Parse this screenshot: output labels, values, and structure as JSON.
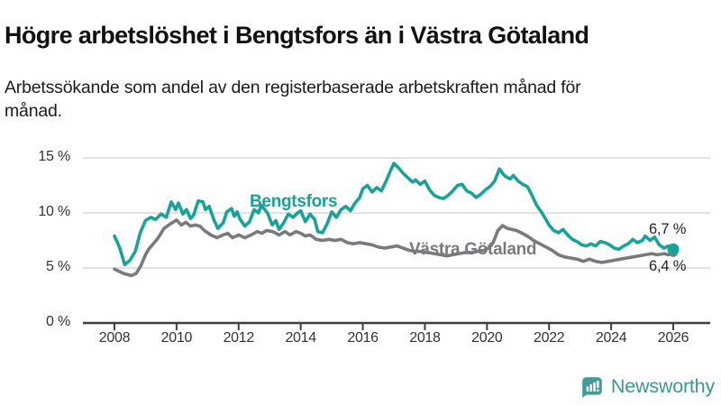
{
  "header": {
    "title": "Högre arbetslöshet i Bengtsfors än i Västra Götaland",
    "subtitle": "Arbetssökande som andel av den registerbaserade arbetskraften månad för månad."
  },
  "footer": {
    "brand": "Newsworthy",
    "logo_icon": "bar-chart-speech-bubble-icon",
    "logo_color": "#459b97"
  },
  "colors": {
    "bengtsfors_line": "#17a398",
    "vastra_gotaland_line": "#797a7e",
    "gridline": "#d8d8d8",
    "axis": "#3f3f3f",
    "tick_text": "#333333"
  },
  "chart_data": {
    "type": "line",
    "title": "Högre arbetslöshet i Bengtsfors än i Västra Götaland",
    "subtitle": "Arbetssökande som andel av den registerbaserade arbetskraften månad för månad.",
    "xlabel": "",
    "ylabel": "",
    "xlim": [
      2007.9,
      2027.2
    ],
    "ylim": [
      0,
      17
    ],
    "grid": "horizontal",
    "legend_position": "inline-labels",
    "x_axis": {
      "ticks": [
        {
          "label": "2008",
          "value": 2008
        },
        {
          "label": "2010",
          "value": 2010
        },
        {
          "label": "2012",
          "value": 2012
        },
        {
          "label": "2014",
          "value": 2014
        },
        {
          "label": "2016",
          "value": 2016
        },
        {
          "label": "2018",
          "value": 2018
        },
        {
          "label": "2020",
          "value": 2020
        },
        {
          "label": "2022",
          "value": 2022
        },
        {
          "label": "2024",
          "value": 2024
        },
        {
          "label": "2026",
          "value": 2026
        }
      ]
    },
    "y_axis": {
      "ticks": [
        {
          "label": "0 %",
          "value": 0
        },
        {
          "label": "5 %",
          "value": 5
        },
        {
          "label": "10 %",
          "value": 10
        },
        {
          "label": "15 %",
          "value": 15
        }
      ],
      "gridline_values": [
        5,
        10,
        15
      ]
    },
    "series": [
      {
        "name": "Bengtsfors",
        "color": "#17a398",
        "end_label": "6,7 %",
        "end_value": 6.7,
        "points": [
          [
            2008.0,
            7.9
          ],
          [
            2008.08,
            7.4
          ],
          [
            2008.17,
            6.8
          ],
          [
            2008.33,
            5.3
          ],
          [
            2008.5,
            5.7
          ],
          [
            2008.67,
            6.5
          ],
          [
            2008.83,
            8.2
          ],
          [
            2009.0,
            9.3
          ],
          [
            2009.17,
            9.6
          ],
          [
            2009.33,
            9.4
          ],
          [
            2009.5,
            9.9
          ],
          [
            2009.67,
            9.6
          ],
          [
            2009.83,
            11.0
          ],
          [
            2009.97,
            10.3
          ],
          [
            2010.06,
            10.9
          ],
          [
            2010.2,
            9.9
          ],
          [
            2010.32,
            10.3
          ],
          [
            2010.45,
            9.5
          ],
          [
            2010.55,
            9.8
          ],
          [
            2010.7,
            11.1
          ],
          [
            2010.85,
            11.0
          ],
          [
            2010.93,
            10.3
          ],
          [
            2011.05,
            10.6
          ],
          [
            2011.2,
            9.4
          ],
          [
            2011.33,
            8.6
          ],
          [
            2011.5,
            9.1
          ],
          [
            2011.62,
            10.1
          ],
          [
            2011.77,
            10.4
          ],
          [
            2011.86,
            9.7
          ],
          [
            2011.95,
            10.1
          ],
          [
            2012.05,
            9.4
          ],
          [
            2012.2,
            8.8
          ],
          [
            2012.35,
            9.2
          ],
          [
            2012.5,
            10.3
          ],
          [
            2012.64,
            10.0
          ],
          [
            2012.73,
            10.7
          ],
          [
            2012.93,
            10.0
          ],
          [
            2013.08,
            8.9
          ],
          [
            2013.2,
            9.3
          ],
          [
            2013.3,
            8.5
          ],
          [
            2013.45,
            9.1
          ],
          [
            2013.6,
            9.9
          ],
          [
            2013.75,
            9.6
          ],
          [
            2013.9,
            10.0
          ],
          [
            2014.0,
            10.2
          ],
          [
            2014.15,
            9.2
          ],
          [
            2014.3,
            9.9
          ],
          [
            2014.45,
            9.4
          ],
          [
            2014.55,
            8.3
          ],
          [
            2014.7,
            8.2
          ],
          [
            2014.85,
            9.0
          ],
          [
            2015.0,
            10.1
          ],
          [
            2015.15,
            9.6
          ],
          [
            2015.3,
            10.3
          ],
          [
            2015.45,
            10.6
          ],
          [
            2015.6,
            10.2
          ],
          [
            2015.75,
            10.9
          ],
          [
            2015.9,
            11.4
          ],
          [
            2016.0,
            12.2
          ],
          [
            2016.15,
            12.5
          ],
          [
            2016.3,
            11.9
          ],
          [
            2016.45,
            12.3
          ],
          [
            2016.6,
            12.0
          ],
          [
            2016.75,
            12.9
          ],
          [
            2016.9,
            13.9
          ],
          [
            2017.0,
            14.5
          ],
          [
            2017.15,
            14.1
          ],
          [
            2017.3,
            13.6
          ],
          [
            2017.45,
            13.2
          ],
          [
            2017.6,
            12.8
          ],
          [
            2017.7,
            13.0
          ],
          [
            2017.85,
            12.6
          ],
          [
            2018.0,
            12.9
          ],
          [
            2018.15,
            12.1
          ],
          [
            2018.3,
            11.6
          ],
          [
            2018.45,
            11.4
          ],
          [
            2018.6,
            11.3
          ],
          [
            2018.75,
            11.6
          ],
          [
            2018.9,
            12.0
          ],
          [
            2019.05,
            12.5
          ],
          [
            2019.2,
            12.6
          ],
          [
            2019.35,
            12.0
          ],
          [
            2019.5,
            11.8
          ],
          [
            2019.65,
            11.4
          ],
          [
            2019.8,
            11.7
          ],
          [
            2019.95,
            12.1
          ],
          [
            2020.1,
            12.4
          ],
          [
            2020.25,
            12.9
          ],
          [
            2020.4,
            14.0
          ],
          [
            2020.5,
            13.6
          ],
          [
            2020.6,
            13.3
          ],
          [
            2020.75,
            13.1
          ],
          [
            2020.85,
            13.4
          ],
          [
            2021.0,
            12.9
          ],
          [
            2021.15,
            12.6
          ],
          [
            2021.3,
            12.4
          ],
          [
            2021.45,
            11.6
          ],
          [
            2021.6,
            10.7
          ],
          [
            2021.75,
            10.1
          ],
          [
            2021.9,
            9.4
          ],
          [
            2022.0,
            8.9
          ],
          [
            2022.15,
            8.4
          ],
          [
            2022.3,
            8.2
          ],
          [
            2022.45,
            8.5
          ],
          [
            2022.6,
            8.0
          ],
          [
            2022.75,
            7.6
          ],
          [
            2022.9,
            7.4
          ],
          [
            2023.05,
            7.1
          ],
          [
            2023.2,
            7.0
          ],
          [
            2023.35,
            7.2
          ],
          [
            2023.5,
            7.0
          ],
          [
            2023.65,
            7.4
          ],
          [
            2023.8,
            7.3
          ],
          [
            2023.95,
            7.1
          ],
          [
            2024.1,
            6.8
          ],
          [
            2024.25,
            6.7
          ],
          [
            2024.4,
            7.0
          ],
          [
            2024.55,
            7.2
          ],
          [
            2024.7,
            7.6
          ],
          [
            2024.85,
            7.3
          ],
          [
            2025.0,
            7.5
          ],
          [
            2025.1,
            7.9
          ],
          [
            2025.25,
            7.5
          ],
          [
            2025.4,
            7.8
          ],
          [
            2025.55,
            7.1
          ],
          [
            2025.7,
            6.8
          ],
          [
            2025.85,
            7.0
          ],
          [
            2026.0,
            6.7
          ]
        ]
      },
      {
        "name": "Västra Götaland",
        "color": "#797a7e",
        "end_label": "6,4 %",
        "end_value": 6.4,
        "points": [
          [
            2008.0,
            4.9
          ],
          [
            2008.15,
            4.7
          ],
          [
            2008.3,
            4.5
          ],
          [
            2008.55,
            4.3
          ],
          [
            2008.7,
            4.5
          ],
          [
            2008.85,
            5.2
          ],
          [
            2009.0,
            6.2
          ],
          [
            2009.1,
            6.7
          ],
          [
            2009.25,
            7.2
          ],
          [
            2009.4,
            7.7
          ],
          [
            2009.6,
            8.6
          ],
          [
            2009.8,
            9.0
          ],
          [
            2010.0,
            9.35
          ],
          [
            2010.15,
            8.9
          ],
          [
            2010.3,
            9.15
          ],
          [
            2010.45,
            8.8
          ],
          [
            2010.6,
            8.9
          ],
          [
            2010.75,
            8.8
          ],
          [
            2010.9,
            8.4
          ],
          [
            2011.1,
            8.0
          ],
          [
            2011.3,
            7.75
          ],
          [
            2011.5,
            8.0
          ],
          [
            2011.65,
            8.15
          ],
          [
            2011.8,
            7.75
          ],
          [
            2012.0,
            8.0
          ],
          [
            2012.2,
            7.75
          ],
          [
            2012.4,
            8.0
          ],
          [
            2012.6,
            8.3
          ],
          [
            2012.75,
            8.15
          ],
          [
            2012.9,
            8.4
          ],
          [
            2013.1,
            8.3
          ],
          [
            2013.3,
            8.0
          ],
          [
            2013.5,
            8.3
          ],
          [
            2013.65,
            8.0
          ],
          [
            2013.85,
            8.3
          ],
          [
            2014.0,
            8.15
          ],
          [
            2014.15,
            7.9
          ],
          [
            2014.3,
            8.0
          ],
          [
            2014.5,
            7.6
          ],
          [
            2014.7,
            7.5
          ],
          [
            2014.9,
            7.6
          ],
          [
            2015.1,
            7.5
          ],
          [
            2015.3,
            7.6
          ],
          [
            2015.5,
            7.3
          ],
          [
            2015.7,
            7.2
          ],
          [
            2015.9,
            7.3
          ],
          [
            2016.1,
            7.2
          ],
          [
            2016.3,
            7.1
          ],
          [
            2016.5,
            6.9
          ],
          [
            2016.7,
            6.8
          ],
          [
            2016.9,
            6.9
          ],
          [
            2017.1,
            7.0
          ],
          [
            2017.3,
            6.8
          ],
          [
            2017.5,
            6.6
          ],
          [
            2017.7,
            6.5
          ],
          [
            2017.9,
            6.5
          ],
          [
            2018.1,
            6.4
          ],
          [
            2018.3,
            6.3
          ],
          [
            2018.5,
            6.2
          ],
          [
            2018.7,
            6.1
          ],
          [
            2018.9,
            6.2
          ],
          [
            2019.1,
            6.3
          ],
          [
            2019.3,
            6.4
          ],
          [
            2019.5,
            6.4
          ],
          [
            2019.7,
            6.5
          ],
          [
            2019.9,
            6.6
          ],
          [
            2020.05,
            6.8
          ],
          [
            2020.2,
            7.3
          ],
          [
            2020.35,
            8.4
          ],
          [
            2020.5,
            8.85
          ],
          [
            2020.65,
            8.6
          ],
          [
            2020.8,
            8.5
          ],
          [
            2020.95,
            8.4
          ],
          [
            2021.1,
            8.2
          ],
          [
            2021.3,
            7.9
          ],
          [
            2021.5,
            7.5
          ],
          [
            2021.7,
            7.2
          ],
          [
            2021.9,
            6.9
          ],
          [
            2022.1,
            6.6
          ],
          [
            2022.3,
            6.2
          ],
          [
            2022.5,
            6.0
          ],
          [
            2022.7,
            5.9
          ],
          [
            2022.9,
            5.8
          ],
          [
            2023.1,
            5.6
          ],
          [
            2023.3,
            5.8
          ],
          [
            2023.5,
            5.6
          ],
          [
            2023.7,
            5.5
          ],
          [
            2023.9,
            5.6
          ],
          [
            2024.1,
            5.7
          ],
          [
            2024.3,
            5.8
          ],
          [
            2024.5,
            5.9
          ],
          [
            2024.7,
            6.0
          ],
          [
            2024.9,
            6.1
          ],
          [
            2025.1,
            6.2
          ],
          [
            2025.3,
            6.3
          ],
          [
            2025.5,
            6.2
          ],
          [
            2025.7,
            6.3
          ],
          [
            2025.85,
            6.2
          ],
          [
            2026.0,
            6.4
          ]
        ]
      }
    ]
  }
}
